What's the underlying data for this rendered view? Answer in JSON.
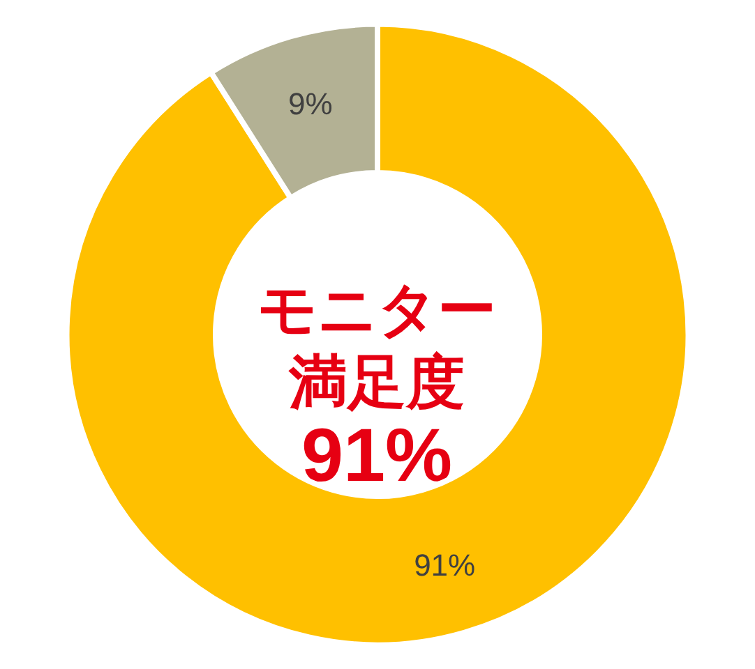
{
  "chart_data": {
    "type": "donut",
    "title": "モニター満足度",
    "subtitle": "91%",
    "categories": [
      null,
      null
    ],
    "values": [
      91,
      9
    ],
    "colors": [
      "#ffc000",
      "#b3b194"
    ],
    "value_labels": [
      "91%",
      "9%"
    ]
  }
}
